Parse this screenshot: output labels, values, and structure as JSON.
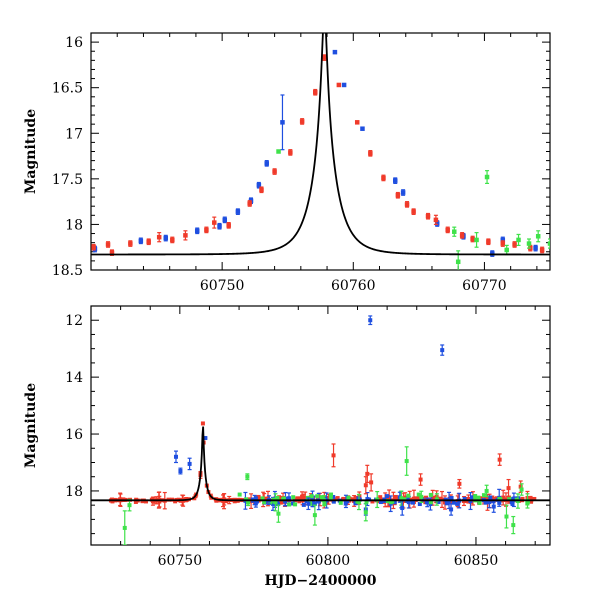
{
  "colors": {
    "blue": "#1f4fe0",
    "red": "#f03a2a",
    "green": "#3fe24a",
    "model": "#000000"
  },
  "chart_data": [
    {
      "type": "scatter",
      "id": "top",
      "xlabel": "",
      "ylabel": "Magnitude",
      "xlim": [
        60740,
        60775
      ],
      "ylim": [
        18.5,
        15.9
      ],
      "y_inverted": true,
      "x_ticks": [
        60750,
        60760,
        60770
      ],
      "y_ticks": [
        16,
        16.5,
        17,
        17.5,
        18,
        18.5
      ],
      "y_tick_labels": [
        "16",
        "16.5",
        "17",
        "17.5",
        "18",
        "18.5"
      ],
      "model_curve": {
        "t0": 60757.8,
        "tE": 1.8,
        "u0": 0.085,
        "baseline": 18.33
      },
      "series": [
        {
          "color": "blue",
          "points": [
            {
              "x": 60740.3,
              "y": 18.27,
              "e": 0.03
            },
            {
              "x": 60743.8,
              "y": 18.18,
              "e": 0.03
            },
            {
              "x": 60745.7,
              "y": 18.15,
              "e": 0.03
            },
            {
              "x": 60748.1,
              "y": 18.07,
              "e": 0.03
            },
            {
              "x": 60749.8,
              "y": 18.02,
              "e": 0.03
            },
            {
              "x": 60750.2,
              "y": 17.95,
              "e": 0.03
            },
            {
              "x": 60751.2,
              "y": 17.86,
              "e": 0.03
            },
            {
              "x": 60752.2,
              "y": 17.74,
              "e": 0.03
            },
            {
              "x": 60752.8,
              "y": 17.57,
              "e": 0.03
            },
            {
              "x": 60753.4,
              "y": 17.33,
              "e": 0.03
            },
            {
              "x": 60754.6,
              "y": 16.88,
              "e": 0.3
            },
            {
              "x": 60758.6,
              "y": 16.11,
              "e": 0.02
            },
            {
              "x": 60759.3,
              "y": 16.47,
              "e": 0.02
            },
            {
              "x": 60760.7,
              "y": 16.95,
              "e": 0.02
            },
            {
              "x": 60763.2,
              "y": 17.52,
              "e": 0.03
            },
            {
              "x": 60763.8,
              "y": 17.65,
              "e": 0.03
            },
            {
              "x": 60766.4,
              "y": 17.99,
              "e": 0.03
            },
            {
              "x": 60768.4,
              "y": 18.13,
              "e": 0.03
            },
            {
              "x": 60770.6,
              "y": 18.32,
              "e": 0.03
            },
            {
              "x": 60771.4,
              "y": 18.17,
              "e": 0.03
            },
            {
              "x": 60773.9,
              "y": 18.26,
              "e": 0.03
            }
          ]
        },
        {
          "color": "red",
          "points": [
            {
              "x": 60740.2,
              "y": 18.25,
              "e": 0.03
            },
            {
              "x": 60741.3,
              "y": 18.22,
              "e": 0.03
            },
            {
              "x": 60741.6,
              "y": 18.31,
              "e": 0.03
            },
            {
              "x": 60743.0,
              "y": 18.21,
              "e": 0.03
            },
            {
              "x": 60744.4,
              "y": 18.19,
              "e": 0.03
            },
            {
              "x": 60745.2,
              "y": 18.14,
              "e": 0.05
            },
            {
              "x": 60746.2,
              "y": 18.17,
              "e": 0.03
            },
            {
              "x": 60747.2,
              "y": 18.12,
              "e": 0.05
            },
            {
              "x": 60748.8,
              "y": 18.06,
              "e": 0.03
            },
            {
              "x": 60749.4,
              "y": 17.98,
              "e": 0.06
            },
            {
              "x": 60750.5,
              "y": 18.01,
              "e": 0.03
            },
            {
              "x": 60752.1,
              "y": 17.77,
              "e": 0.03
            },
            {
              "x": 60753.0,
              "y": 17.62,
              "e": 0.03
            },
            {
              "x": 60754.0,
              "y": 17.42,
              "e": 0.03
            },
            {
              "x": 60755.2,
              "y": 17.21,
              "e": 0.03
            },
            {
              "x": 60756.1,
              "y": 16.87,
              "e": 0.03
            },
            {
              "x": 60757.1,
              "y": 16.55,
              "e": 0.03
            },
            {
              "x": 60757.8,
              "y": 16.17,
              "e": 0.03
            },
            {
              "x": 60758.9,
              "y": 16.47,
              "e": 0.02
            },
            {
              "x": 60760.3,
              "y": 16.88,
              "e": 0.02
            },
            {
              "x": 60761.3,
              "y": 17.22,
              "e": 0.03
            },
            {
              "x": 60762.3,
              "y": 17.49,
              "e": 0.03
            },
            {
              "x": 60763.4,
              "y": 17.68,
              "e": 0.03
            },
            {
              "x": 60764.1,
              "y": 17.78,
              "e": 0.03
            },
            {
              "x": 60764.6,
              "y": 17.86,
              "e": 0.03
            },
            {
              "x": 60765.7,
              "y": 17.91,
              "e": 0.03
            },
            {
              "x": 60766.3,
              "y": 17.95,
              "e": 0.05
            },
            {
              "x": 60767.2,
              "y": 18.06,
              "e": 0.03
            },
            {
              "x": 60768.3,
              "y": 18.12,
              "e": 0.03
            },
            {
              "x": 60769.1,
              "y": 18.16,
              "e": 0.03
            },
            {
              "x": 60770.3,
              "y": 18.19,
              "e": 0.03
            },
            {
              "x": 60771.4,
              "y": 18.21,
              "e": 0.03
            },
            {
              "x": 60772.3,
              "y": 18.22,
              "e": 0.03
            },
            {
              "x": 60773.5,
              "y": 18.26,
              "e": 0.03
            },
            {
              "x": 60774.4,
              "y": 18.28,
              "e": 0.03
            }
          ]
        },
        {
          "color": "green",
          "points": [
            {
              "x": 60754.3,
              "y": 17.2,
              "e": 0.02
            },
            {
              "x": 60767.7,
              "y": 18.08,
              "e": 0.05
            },
            {
              "x": 60768.0,
              "y": 18.41,
              "e": 0.12
            },
            {
              "x": 60769.4,
              "y": 18.17,
              "e": 0.08
            },
            {
              "x": 60770.2,
              "y": 17.48,
              "e": 0.07
            },
            {
              "x": 60771.7,
              "y": 18.28,
              "e": 0.05
            },
            {
              "x": 60772.6,
              "y": 18.17,
              "e": 0.06
            },
            {
              "x": 60773.4,
              "y": 18.21,
              "e": 0.05
            },
            {
              "x": 60774.1,
              "y": 18.13,
              "e": 0.06
            },
            {
              "x": 60775.0,
              "y": 18.21,
              "e": 0.05
            }
          ]
        }
      ]
    },
    {
      "type": "scatter",
      "id": "bottom",
      "xlabel": "HJD−2400000",
      "ylabel": "Magnitude",
      "xlim": [
        60720,
        60875
      ],
      "ylim": [
        19.9,
        11.5
      ],
      "y_inverted": true,
      "x_ticks": [
        60750,
        60800,
        60850
      ],
      "y_ticks": [
        12,
        14,
        16,
        18
      ],
      "y_tick_labels": [
        "12",
        "14",
        "16",
        "18"
      ],
      "model_curve": {
        "t0": 60757.8,
        "tE": 1.8,
        "u0": 0.085,
        "baseline": 18.33
      },
      "series": [
        {
          "color": "blue",
          "points": [
            {
              "x": 60748.7,
              "y": 16.8,
              "e": 0.2
            },
            {
              "x": 60750.2,
              "y": 17.3,
              "e": 0.1
            },
            {
              "x": 60753.3,
              "y": 17.05,
              "e": 0.2
            },
            {
              "x": 60758.6,
              "y": 16.14,
              "e": 0.03
            },
            {
              "x": 60780.1,
              "y": 18.32,
              "e": 0.15
            },
            {
              "x": 60793.4,
              "y": 18.45,
              "e": 0.2
            },
            {
              "x": 60812.8,
              "y": 18.65,
              "e": 0.2
            },
            {
              "x": 60814.3,
              "y": 12.0,
              "e": 0.15
            },
            {
              "x": 60825.1,
              "y": 18.6,
              "e": 0.25
            },
            {
              "x": 60838.6,
              "y": 13.05,
              "e": 0.18
            },
            {
              "x": 60841.6,
              "y": 18.65,
              "e": 0.2
            },
            {
              "x": 60856.0,
              "y": 18.55,
              "e": 0.2
            }
          ]
        },
        {
          "color": "red",
          "points": [
            {
              "x": 60801.9,
              "y": 16.75,
              "e": 0.4
            },
            {
              "x": 60812.8,
              "y": 17.8,
              "e": 0.3
            },
            {
              "x": 60813.3,
              "y": 17.4,
              "e": 0.3
            },
            {
              "x": 60814.6,
              "y": 17.7,
              "e": 0.3
            },
            {
              "x": 60831.3,
              "y": 17.6,
              "e": 0.2
            },
            {
              "x": 60844.4,
              "y": 17.75,
              "e": 0.15
            },
            {
              "x": 60858.0,
              "y": 16.9,
              "e": 0.2
            },
            {
              "x": 60861.0,
              "y": 17.9,
              "e": 0.3
            },
            {
              "x": 60865.1,
              "y": 17.85,
              "e": 0.2
            }
          ]
        },
        {
          "color": "green",
          "points": [
            {
              "x": 60731.4,
              "y": 19.3,
              "e": 0.6
            },
            {
              "x": 60733.0,
              "y": 18.5,
              "e": 0.2
            },
            {
              "x": 60772.8,
              "y": 17.5,
              "e": 0.1
            },
            {
              "x": 60782.3,
              "y": 18.4,
              "e": 0.3
            },
            {
              "x": 60783.3,
              "y": 18.8,
              "e": 0.3
            },
            {
              "x": 60795.6,
              "y": 18.85,
              "e": 0.35
            },
            {
              "x": 60812.8,
              "y": 18.75,
              "e": 0.3
            },
            {
              "x": 60826.6,
              "y": 16.95,
              "e": 0.5
            },
            {
              "x": 60836.8,
              "y": 18.3,
              "e": 0.2
            },
            {
              "x": 60853.6,
              "y": 18.0,
              "e": 0.2
            },
            {
              "x": 60860.3,
              "y": 18.9,
              "e": 0.4
            },
            {
              "x": 60862.6,
              "y": 19.2,
              "e": 0.3
            },
            {
              "x": 60865.4,
              "y": 17.95,
              "e": 0.2
            },
            {
              "x": 60867.4,
              "y": 18.35,
              "e": 0.25
            }
          ]
        }
      ],
      "dense_scatter": [
        {
          "color": "red",
          "x_range": [
            60725,
            60870
          ],
          "y_center": 18.3,
          "spread": 0.07,
          "count": 260
        },
        {
          "color": "blue",
          "x_range": [
            60770,
            60868
          ],
          "y_center": 18.35,
          "spread": 0.1,
          "count": 90
        },
        {
          "color": "green",
          "x_range": [
            60770,
            60868
          ],
          "y_center": 18.3,
          "spread": 0.12,
          "count": 55
        }
      ]
    }
  ]
}
